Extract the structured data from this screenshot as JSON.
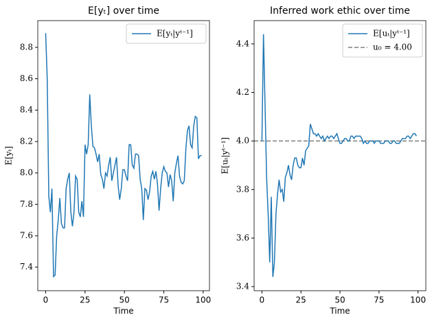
{
  "chart_data": [
    {
      "type": "line",
      "title": "E[yₜ] over time",
      "x_label": "Time",
      "y_label": "E[yₜ]",
      "x": [
        0,
        1,
        2,
        3,
        4,
        5,
        6,
        7,
        8,
        9,
        10,
        11,
        12,
        13,
        14,
        15,
        16,
        17,
        18,
        19,
        20,
        21,
        22,
        23,
        24,
        25,
        26,
        27,
        28,
        29,
        30,
        31,
        32,
        33,
        34,
        35,
        36,
        37,
        38,
        39,
        40,
        41,
        42,
        43,
        44,
        45,
        46,
        47,
        48,
        49,
        50,
        51,
        52,
        53,
        54,
        55,
        56,
        57,
        58,
        59,
        60,
        61,
        62,
        63,
        64,
        65,
        66,
        67,
        68,
        69,
        70,
        71,
        72,
        73,
        74,
        75,
        76,
        77,
        78,
        79,
        80,
        81,
        82,
        83,
        84,
        85,
        86,
        87,
        88,
        89,
        90,
        91,
        92,
        93,
        94,
        95,
        96,
        97,
        98,
        99
      ],
      "series": [
        {
          "name": "E[yₜ|yᵗ⁻¹]",
          "color": "#1f77b4",
          "values": [
            8.89,
            8.6,
            7.85,
            7.75,
            7.9,
            7.34,
            7.35,
            7.6,
            7.7,
            7.84,
            7.68,
            7.65,
            7.65,
            7.9,
            7.96,
            8.0,
            7.75,
            7.66,
            7.75,
            7.98,
            7.96,
            7.75,
            7.72,
            7.82,
            7.72,
            8.18,
            8.12,
            8.18,
            8.5,
            8.3,
            8.17,
            8.16,
            8.12,
            8.07,
            8.12,
            7.99,
            7.96,
            7.9,
            8.0,
            7.98,
            8.05,
            8.1,
            7.95,
            8.0,
            8.05,
            8.1,
            7.92,
            7.83,
            7.9,
            8.02,
            8.02,
            7.98,
            7.95,
            8.18,
            8.18,
            8.05,
            8.03,
            8.12,
            8.12,
            8.11,
            7.96,
            7.9,
            7.7,
            7.9,
            7.89,
            7.83,
            7.88,
            7.98,
            8.01,
            7.96,
            8.01,
            7.93,
            7.76,
            7.9,
            8.0,
            8.04,
            8.01,
            8.0,
            7.91,
            7.99,
            7.95,
            7.82,
            8.0,
            8.06,
            8.11,
            7.98,
            7.94,
            7.93,
            7.95,
            8.15,
            8.27,
            8.3,
            8.18,
            8.16,
            8.3,
            8.36,
            8.35,
            8.09,
            8.11,
            8.11
          ]
        }
      ],
      "xlim": [
        -5,
        104
      ],
      "xticks": [
        0,
        25,
        50,
        75,
        100
      ],
      "ylim": [
        7.25,
        8.97
      ],
      "yticks": [
        7.4,
        7.6,
        7.8,
        {
          "value": 8,
          "label": "8.0"
        },
        8.2,
        8.4,
        8.6,
        8.8
      ],
      "legend": "upper right"
    },
    {
      "type": "line",
      "title": "Inferred work ethic over time",
      "x_label": "Time",
      "y_label": "E[uₜ|yᵗ⁻¹]",
      "x": [
        0,
        1,
        2,
        3,
        4,
        5,
        6,
        7,
        8,
        9,
        10,
        11,
        12,
        13,
        14,
        15,
        16,
        17,
        18,
        19,
        20,
        21,
        22,
        23,
        24,
        25,
        26,
        27,
        28,
        29,
        30,
        31,
        32,
        33,
        34,
        35,
        36,
        37,
        38,
        39,
        40,
        41,
        42,
        43,
        44,
        45,
        46,
        47,
        48,
        49,
        50,
        51,
        52,
        53,
        54,
        55,
        56,
        57,
        58,
        59,
        60,
        61,
        62,
        63,
        64,
        65,
        66,
        67,
        68,
        69,
        70,
        71,
        72,
        73,
        74,
        75,
        76,
        77,
        78,
        79,
        80,
        81,
        82,
        83,
        84,
        85,
        86,
        87,
        88,
        89,
        90,
        91,
        92,
        93,
        94,
        95,
        96,
        97,
        98,
        99
      ],
      "series": [
        {
          "name": "E[uₜ|yᵗ⁻¹]",
          "color": "#1f77b4",
          "values": [
            4.0,
            4.44,
            4.15,
            3.85,
            3.7,
            3.5,
            3.77,
            3.44,
            3.5,
            3.7,
            3.78,
            3.84,
            3.79,
            3.8,
            3.75,
            3.85,
            3.87,
            3.9,
            3.86,
            3.84,
            3.9,
            3.93,
            3.93,
            3.9,
            3.89,
            3.89,
            3.93,
            3.9,
            3.96,
            3.97,
            3.98,
            4.07,
            4.05,
            4.03,
            4.03,
            4.02,
            4.03,
            4.02,
            4.01,
            4.02,
            4.0,
            4.01,
            4.02,
            4.01,
            4.02,
            4.02,
            4.01,
            4.02,
            4.03,
            4.01,
            3.99,
            3.99,
            4.0,
            4.01,
            4.01,
            4.0,
            4.0,
            4.02,
            4.02,
            4.01,
            4.02,
            4.02,
            4.02,
            4.02,
            4.01,
            3.99,
            4.0,
            3.99,
            3.99,
            4.0,
            4.0,
            4.0,
            3.99,
            4.0,
            4.0,
            4.0,
            3.99,
            3.99,
            3.99,
            4.0,
            4.0,
            4.0,
            3.99,
            3.99,
            4.0,
            4.0,
            3.99,
            3.99,
            3.99,
            4.0,
            4.01,
            4.01,
            4.01,
            4.02,
            4.02,
            4.01,
            4.02,
            4.03,
            4.03,
            4.02
          ]
        }
      ],
      "hline": {
        "name": "u₀ = 4.00",
        "value": 4,
        "color": "#7f7f7f",
        "style": "dashed"
      },
      "xlim": [
        -5,
        105
      ],
      "xticks": [
        0,
        25,
        50,
        75,
        100
      ],
      "ylim": [
        3.383,
        4.496
      ],
      "yticks": [
        3.4,
        3.6,
        3.8,
        {
          "value": 4,
          "label": "4.0"
        },
        4.2,
        4.4
      ],
      "legend": "upper right"
    }
  ]
}
